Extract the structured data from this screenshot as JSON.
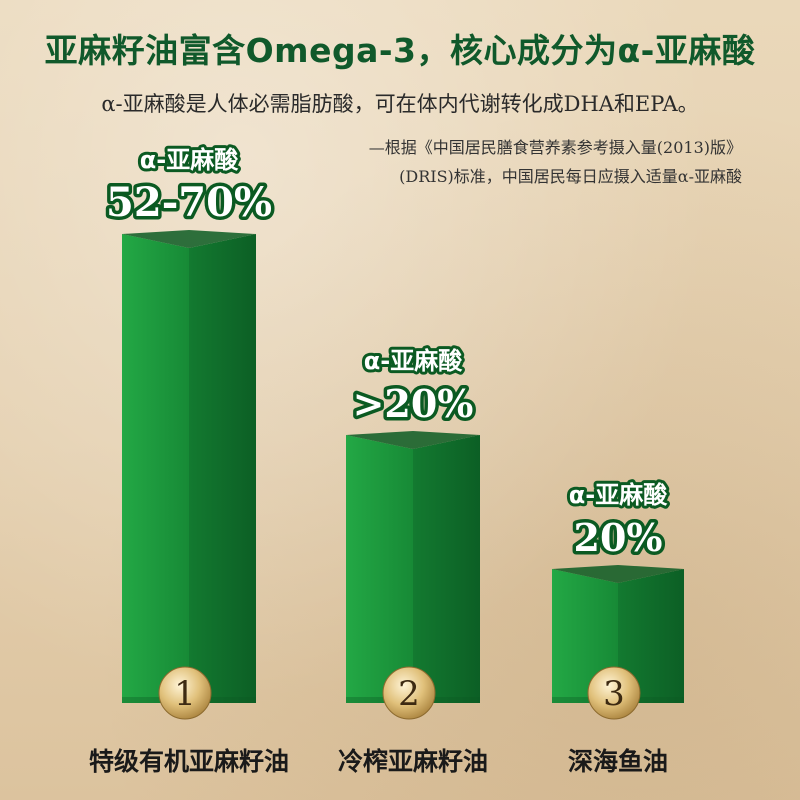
{
  "header": {
    "title": "亚麻籽油富含Omega-3，核心成分为α-亚麻酸",
    "subtitle": "α-亚麻酸是人体必需脂肪酸，可在体内代谢转化成DHA和EPA。",
    "reference_line1": "—根据《中国居民膳食营养素参考摄入量(2013)版》",
    "reference_line2": "(DRIS)标准，中国居民每日应摄入适量α-亚麻酸"
  },
  "chart_data": {
    "type": "bar",
    "categories": [
      "特级有机亚麻籽油",
      "冷榨亚麻籽油",
      "深海鱼油"
    ],
    "ranks": [
      "1",
      "2",
      "3"
    ],
    "label_prefix": "α-亚麻酸",
    "value_labels": [
      "52-70%",
      ">20%",
      "20%"
    ],
    "values": [
      70,
      40,
      20
    ],
    "colors": {
      "bar_front": "#1c9a3c",
      "bar_side": "#0f6e2a",
      "bar_top": "#0b5a22",
      "label_outline": "#0b5a22",
      "label_fill": "#ffffff",
      "badge": "#d9b870"
    }
  }
}
